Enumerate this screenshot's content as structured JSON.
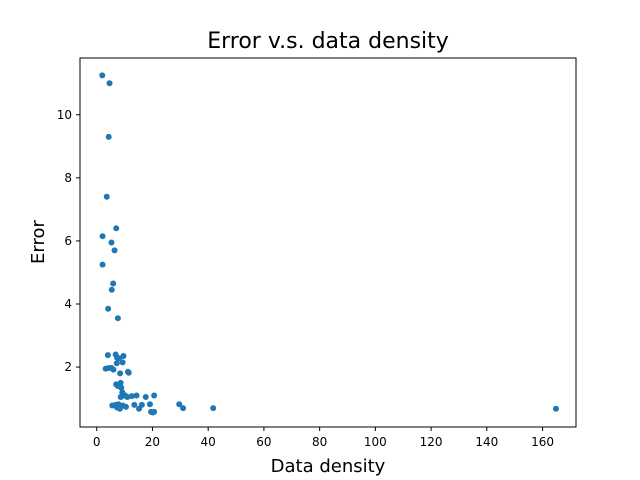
{
  "chart_data": {
    "type": "scatter",
    "title": "Error v.s. data density",
    "xlabel": "Data density",
    "ylabel": "Error",
    "xlim": [
      -6,
      172
    ],
    "ylim": [
      0.1,
      11.8
    ],
    "xticks": [
      0,
      20,
      40,
      60,
      80,
      100,
      120,
      140,
      160
    ],
    "yticks": [
      2,
      4,
      6,
      8,
      10
    ],
    "xtick_labels": [
      "0",
      "20",
      "40",
      "60",
      "80",
      "100",
      "120",
      "140",
      "160"
    ],
    "ytick_labels": [
      "2",
      "4",
      "6",
      "8",
      "10"
    ],
    "grid": false,
    "color": "#1f77b4",
    "series": [
      {
        "points": [
          [
            2,
            11.25
          ],
          [
            4.6,
            11.0
          ],
          [
            4.3,
            9.3
          ],
          [
            3.6,
            7.4
          ],
          [
            2.1,
            6.15
          ],
          [
            7.0,
            6.4
          ],
          [
            5.3,
            5.95
          ],
          [
            6.4,
            5.7
          ],
          [
            2.1,
            5.25
          ],
          [
            5.9,
            4.65
          ],
          [
            5.4,
            4.45
          ],
          [
            4.1,
            3.85
          ],
          [
            7.6,
            3.55
          ],
          [
            4.0,
            2.38
          ],
          [
            3.2,
            1.95
          ],
          [
            4.3,
            1.97
          ],
          [
            5.3,
            1.97
          ],
          [
            6.0,
            1.92
          ],
          [
            6.8,
            2.4
          ],
          [
            7.3,
            2.3
          ],
          [
            8.0,
            2.28
          ],
          [
            9.6,
            2.35
          ],
          [
            9.3,
            2.15
          ],
          [
            7.2,
            2.12
          ],
          [
            8.4,
            1.8
          ],
          [
            11.2,
            1.85
          ],
          [
            11.5,
            1.82
          ],
          [
            7.0,
            1.45
          ],
          [
            7.6,
            1.4
          ],
          [
            8.6,
            1.5
          ],
          [
            8.8,
            1.35
          ],
          [
            9.2,
            1.2
          ],
          [
            9.6,
            1.1
          ],
          [
            8.6,
            1.05
          ],
          [
            10.2,
            1.1
          ],
          [
            11.0,
            1.05
          ],
          [
            12.6,
            1.08
          ],
          [
            14.3,
            1.1
          ],
          [
            17.6,
            1.05
          ],
          [
            20.6,
            1.1
          ],
          [
            5.6,
            0.78
          ],
          [
            6.8,
            0.8
          ],
          [
            7.3,
            0.72
          ],
          [
            7.8,
            0.82
          ],
          [
            8.3,
            0.68
          ],
          [
            9.4,
            0.78
          ],
          [
            10.5,
            0.74
          ],
          [
            13.5,
            0.8
          ],
          [
            15.2,
            0.68
          ],
          [
            16.2,
            0.8
          ],
          [
            19.1,
            0.82
          ],
          [
            19.5,
            0.58
          ],
          [
            20.1,
            0.56
          ],
          [
            20.6,
            0.58
          ],
          [
            29.6,
            0.82
          ],
          [
            31.0,
            0.7
          ],
          [
            41.8,
            0.7
          ],
          [
            164.8,
            0.68
          ]
        ]
      }
    ]
  }
}
